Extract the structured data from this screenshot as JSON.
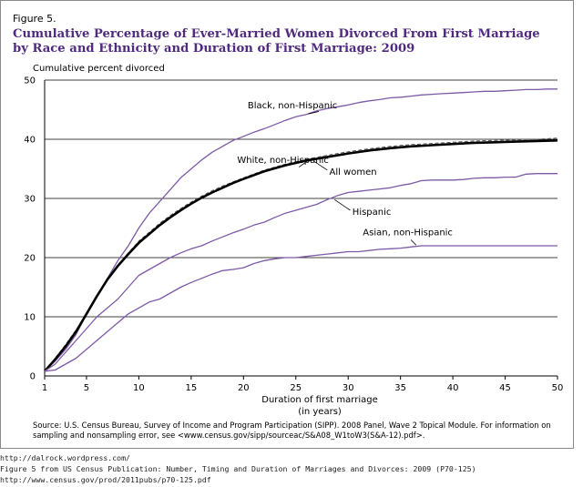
{
  "figure_label": "Figure 5.",
  "title_line1": "Cumulative Percentage of Ever-Married Women Divorced From First Marriage",
  "title_line2": "by Race and Ethnicity and Duration of First Marriage: 2009",
  "source_text": "Source:  U.S. Census Bureau, Survey of Income and Program Participation (SIPP). 2008 Panel, Wave 2 Topical Module. For information on sampling and nonsampling error, see <www.census.gov/sipp/sourceac/S&A08_W1toW3(S&A-12).pdf>.",
  "footer": [
    "http://dalrock.wordpress.com/",
    "Figure 5 from US Census Publication:  Number, Timing and Duration of Marriages and Divorces: 2009 (P70-125)",
    "http://www.census.gov/prod/2011pubs/p70-125.pdf"
  ],
  "colors": {
    "title": "#4f2a7f",
    "series": "#7d5aa6",
    "all_women": "#000000",
    "white_dashed": "#555555"
  },
  "chart_data": {
    "type": "line",
    "ylabel": "Cumulative percent divorced",
    "xlabel_line1": "Duration of first marriage",
    "xlabel_line2": "(in years)",
    "xlim": [
      1,
      50
    ],
    "ylim": [
      0,
      50
    ],
    "xticks": [
      1,
      5,
      10,
      15,
      20,
      25,
      30,
      35,
      40,
      45,
      50
    ],
    "yticks": [
      0,
      10,
      20,
      30,
      40,
      50
    ],
    "grid_y": [
      10,
      20,
      30,
      40,
      50
    ],
    "series": [
      {
        "name": "Black, non-Hispanic",
        "style": "purple",
        "x": [
          1,
          2,
          3,
          4,
          5,
          6,
          7,
          8,
          9,
          10,
          11,
          12,
          13,
          14,
          15,
          16,
          17,
          18,
          19,
          20,
          21,
          22,
          23,
          24,
          25,
          26,
          27,
          28,
          29,
          30,
          31,
          32,
          33,
          34,
          35,
          36,
          37,
          38,
          39,
          40,
          41,
          42,
          43,
          44,
          45,
          46,
          47,
          48,
          49,
          50
        ],
        "values": [
          0.8,
          2.5,
          4.5,
          7,
          10.5,
          13.5,
          16.5,
          19.5,
          22,
          25,
          27.5,
          29.5,
          31.5,
          33.5,
          35,
          36.5,
          37.8,
          38.8,
          39.8,
          40.5,
          41.2,
          41.8,
          42.5,
          43.2,
          43.8,
          44.2,
          44.8,
          45.2,
          45.5,
          45.8,
          46.2,
          46.5,
          46.7,
          47,
          47.1,
          47.3,
          47.5,
          47.6,
          47.7,
          47.8,
          47.9,
          48,
          48.1,
          48.1,
          48.2,
          48.3,
          48.4,
          48.4,
          48.5,
          48.5
        ]
      },
      {
        "name": "White, non-Hispanic",
        "style": "dashed",
        "x": [
          1,
          2,
          3,
          4,
          5,
          6,
          7,
          8,
          9,
          10,
          11,
          12,
          13,
          14,
          15,
          16,
          17,
          18,
          19,
          20,
          22,
          24,
          26,
          28,
          30,
          32,
          34,
          36,
          38,
          40,
          42,
          44,
          46,
          48,
          50
        ],
        "values": [
          0.8,
          3,
          5.3,
          7.8,
          10.5,
          13.5,
          16.3,
          18.8,
          20.8,
          22.8,
          24.3,
          25.8,
          27.1,
          28.3,
          29.4,
          30.4,
          31.3,
          32.1,
          32.8,
          33.5,
          34.8,
          35.8,
          36.6,
          37.3,
          37.9,
          38.4,
          38.8,
          39.1,
          39.3,
          39.5,
          39.7,
          39.8,
          39.9,
          40,
          40.2
        ]
      },
      {
        "name": "All women",
        "style": "bold",
        "x": [
          1,
          2,
          3,
          4,
          5,
          6,
          7,
          8,
          9,
          10,
          11,
          12,
          13,
          14,
          15,
          16,
          17,
          18,
          19,
          20,
          22,
          24,
          26,
          28,
          30,
          32,
          34,
          36,
          38,
          40,
          42,
          44,
          46,
          48,
          50
        ],
        "values": [
          0.8,
          2.8,
          5,
          7.5,
          10.5,
          13.5,
          16.3,
          18.6,
          20.6,
          22.5,
          24,
          25.5,
          26.8,
          28,
          29.1,
          30.1,
          31,
          31.8,
          32.6,
          33.3,
          34.6,
          35.6,
          36.4,
          37,
          37.6,
          38.1,
          38.5,
          38.8,
          39,
          39.2,
          39.4,
          39.5,
          39.6,
          39.7,
          39.8
        ]
      },
      {
        "name": "Hispanic",
        "style": "purple",
        "x": [
          1,
          2,
          3,
          4,
          5,
          6,
          7,
          8,
          9,
          10,
          11,
          12,
          13,
          14,
          15,
          16,
          17,
          18,
          19,
          20,
          21,
          22,
          23,
          24,
          25,
          26,
          27,
          28,
          29,
          30,
          31,
          32,
          33,
          34,
          35,
          36,
          37,
          38,
          39,
          40,
          41,
          42,
          43,
          44,
          45,
          46,
          47,
          48,
          49,
          50
        ],
        "values": [
          0.8,
          2,
          4,
          6,
          8,
          10,
          11.5,
          13,
          15,
          17,
          18,
          19,
          20,
          20.8,
          21.5,
          22,
          22.8,
          23.5,
          24.2,
          24.8,
          25.5,
          26,
          26.8,
          27.5,
          28,
          28.5,
          29,
          29.8,
          30.5,
          31,
          31.2,
          31.4,
          31.6,
          31.8,
          32.2,
          32.5,
          33,
          33.1,
          33.1,
          33.1,
          33.2,
          33.4,
          33.5,
          33.5,
          33.6,
          33.6,
          34.1,
          34.2,
          34.2,
          34.2
        ]
      },
      {
        "name": "Asian, non-Hispanic",
        "style": "purple",
        "x": [
          1,
          2,
          3,
          4,
          5,
          6,
          7,
          8,
          9,
          10,
          11,
          12,
          13,
          14,
          15,
          16,
          17,
          18,
          19,
          20,
          21,
          22,
          23,
          24,
          25,
          26,
          27,
          28,
          29,
          30,
          31,
          32,
          33,
          34,
          35,
          36,
          37,
          38,
          40,
          42,
          44,
          46,
          48,
          50
        ],
        "values": [
          0.8,
          1,
          2,
          3,
          4.5,
          6,
          7.5,
          9,
          10.5,
          11.5,
          12.5,
          13,
          14,
          15,
          15.8,
          16.5,
          17.2,
          17.8,
          18,
          18.3,
          19,
          19.5,
          19.8,
          20,
          20,
          20.2,
          20.4,
          20.6,
          20.8,
          21,
          21,
          21.2,
          21.4,
          21.5,
          21.6,
          21.8,
          22,
          22,
          22,
          22,
          22,
          22,
          22,
          22
        ]
      }
    ],
    "annotations": [
      {
        "text": "Black, non-Hispanic",
        "series": "Black, non-Hispanic"
      },
      {
        "text": "White, non-Hispanic",
        "series": "White, non-Hispanic"
      },
      {
        "text": "All women",
        "series": "All women"
      },
      {
        "text": "Hispanic",
        "series": "Hispanic"
      },
      {
        "text": "Asian, non-Hispanic",
        "series": "Asian, non-Hispanic"
      }
    ]
  }
}
